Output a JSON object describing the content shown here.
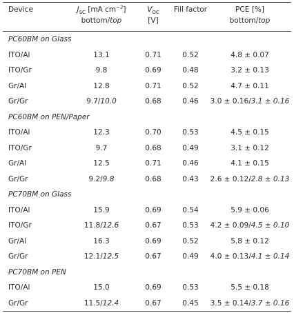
{
  "header": [
    {
      "lines": [
        [
          "Device"
        ]
      ]
    },
    {
      "lines": [
        [
          {
            "text": "J",
            "italic": true
          },
          {
            "text": "SC",
            "sub": true
          },
          " [mA cm",
          {
            "text": "−2",
            "sup": true
          },
          "]"
        ],
        [
          "bottom/",
          {
            "text": "top",
            "italic": true
          }
        ]
      ]
    },
    {
      "lines": [
        [
          {
            "text": "V",
            "italic": true
          },
          {
            "text": "OC",
            "sub": true
          }
        ],
        [
          "[V]"
        ]
      ]
    },
    {
      "lines": [
        [
          "Fill factor"
        ]
      ]
    },
    {
      "lines": [
        [
          "PCE [%]"
        ],
        [
          "bottom/",
          {
            "text": "top",
            "italic": true
          }
        ]
      ]
    }
  ],
  "sections": [
    {
      "title": "PC60BM on Glass",
      "rows": [
        [
          "ITO/Al",
          "13.1",
          "0.71",
          "0.52",
          "4.8 ± 0.07"
        ],
        [
          "ITO/Gr",
          "9.8",
          "0.69",
          "0.48",
          "3.2 ± 0.13"
        ],
        [
          "Gr/Al",
          "12.8",
          "0.71",
          "0.52",
          "4.7 ± 0.11"
        ],
        [
          "Gr/Gr",
          [
            "9.7/",
            {
              "text": "10.0",
              "italic": true
            }
          ],
          "0.68",
          "0.46",
          [
            "3.0 ± 0.16/",
            {
              "text": "3.1 ± 0.16",
              "italic": true
            }
          ]
        ]
      ]
    },
    {
      "title": "PC60BM on PEN/Paper",
      "rows": [
        [
          "ITO/Al",
          "12.3",
          "0.70",
          "0.53",
          "4.5 ± 0.15"
        ],
        [
          "ITO/Gr",
          "9.7",
          "0.68",
          "0.49",
          "3.1 ± 0.12"
        ],
        [
          "Gr/Al",
          "12.5",
          "0.71",
          "0.46",
          "4.1 ± 0.15"
        ],
        [
          "Gr/Gr",
          [
            "9.2/",
            {
              "text": "9.8",
              "italic": true
            }
          ],
          "0.68",
          "0.43",
          [
            "2.6 ± 0.12/",
            {
              "text": "2.8 ± 0.13",
              "italic": true
            }
          ]
        ]
      ]
    },
    {
      "title": "PC70BM on Glass",
      "rows": [
        [
          "ITO/Al",
          "15.9",
          "0.69",
          "0.54",
          "5.9 ± 0.06"
        ],
        [
          "ITO/Gr",
          [
            "11.8/",
            {
              "text": "12.6",
              "italic": true
            }
          ],
          "0.67",
          "0.53",
          [
            "4.2 ± 0.09/",
            {
              "text": "4.5 ± 0.10",
              "italic": true
            }
          ]
        ],
        [
          "Gr/Al",
          "16.3",
          "0.69",
          "0.52",
          "5.8 ± 0.12"
        ],
        [
          "Gr/Gr",
          [
            "12.1/",
            {
              "text": "12.5",
              "italic": true
            }
          ],
          "0.67",
          "0.49",
          [
            "4.0 ± 0.13/",
            {
              "text": "4.1 ± 0.14",
              "italic": true
            }
          ]
        ]
      ]
    },
    {
      "title": "PC70BM on PEN",
      "rows": [
        [
          "ITO/Al",
          "15.0",
          "0.69",
          "0.53",
          "5.5 ± 0.18"
        ],
        [
          "Gr/Gr",
          [
            "11.5/",
            {
              "text": "12.4",
              "italic": true
            }
          ],
          "0.67",
          "0.45",
          [
            "3.5 ± 0.14/",
            {
              "text": "3.7 ± 0.16",
              "italic": true
            }
          ]
        ]
      ]
    }
  ]
}
